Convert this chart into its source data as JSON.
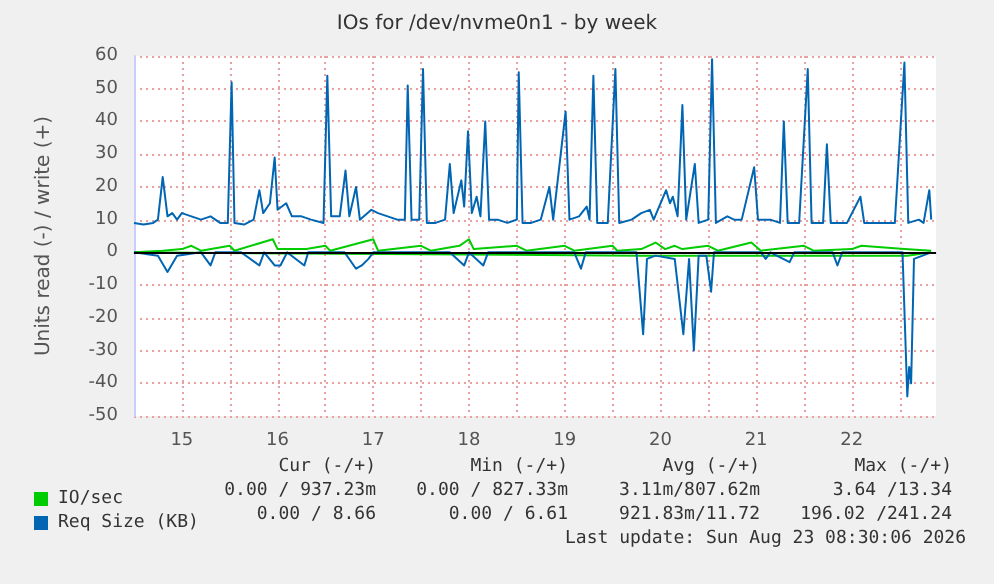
{
  "chart_data": {
    "type": "line",
    "title": "IOs for /dev/nvme0n1 - by week",
    "ylabel": "Units read (-) / write (+)",
    "xlim": [
      15.0,
      23.38
    ],
    "xticks": [
      {
        "value": 15.5,
        "label": "15"
      },
      {
        "value": 16,
        "label": null
      },
      {
        "value": 16.5,
        "label": "16"
      },
      {
        "value": 17,
        "label": null
      },
      {
        "value": 17.5,
        "label": "17"
      },
      {
        "value": 18,
        "label": null
      },
      {
        "value": 18.5,
        "label": "18"
      },
      {
        "value": 19,
        "label": null
      },
      {
        "value": 19.5,
        "label": "19"
      },
      {
        "value": 20,
        "label": null
      },
      {
        "value": 20.5,
        "label": "20"
      },
      {
        "value": 21,
        "label": null
      },
      {
        "value": 21.5,
        "label": "21"
      },
      {
        "value": 22,
        "label": null
      },
      {
        "value": 22.5,
        "label": "22"
      },
      {
        "value": 23,
        "label": null
      }
    ],
    "ylim": [
      -50,
      60
    ],
    "yticks": [
      -50,
      -40,
      -30,
      -20,
      -10,
      0,
      10,
      20,
      30,
      40,
      50,
      60
    ],
    "grid": true,
    "legend": "bottom left",
    "marker": "none",
    "line_style": "solid",
    "ref_lines": [
      {
        "axis": "y",
        "value": 0,
        "label": null,
        "color": "#000000"
      }
    ],
    "series": [
      {
        "color": "#00cc00",
        "x": [
          15.0,
          20.3,
          20.85,
          23.08,
          23.33
        ],
        "values": [
          0,
          -1,
          -1,
          -1,
          0
        ]
      },
      {
        "name": "IO/sec",
        "color": "#00cc00",
        "x": [
          15.0,
          15.3,
          15.5,
          15.6,
          15.7,
          16.0,
          16.05,
          16.45,
          16.5,
          16.8,
          17.0,
          17.05,
          17.5,
          17.55,
          18.0,
          18.1,
          18.4,
          18.5,
          18.55,
          19.0,
          19.1,
          19.5,
          19.6,
          20.0,
          20.05,
          20.3,
          20.45,
          20.55,
          20.65,
          20.73,
          21.0,
          21.1,
          21.45,
          21.55,
          22.0,
          22.1,
          22.5,
          22.6,
          23.05,
          23.33
        ],
        "values": [
          0,
          0.5,
          1,
          2,
          0.5,
          2,
          0.5,
          4,
          1,
          1,
          2,
          0.5,
          4,
          0.5,
          2,
          0.5,
          2,
          4,
          1,
          2,
          0.5,
          2,
          0.5,
          2,
          0.5,
          1,
          3,
          1,
          2,
          1,
          2,
          0.5,
          3,
          0.5,
          2,
          0.5,
          1,
          2,
          1,
          0.5
        ]
      },
      {
        "color": "#0066b3",
        "x": [
          15.0,
          15.25,
          15.35,
          15.45,
          15.7,
          15.8,
          15.85,
          16.12,
          16.31,
          16.36,
          16.47,
          16.53,
          16.6,
          16.78,
          16.82,
          17.2,
          17.32,
          17.38,
          17.45,
          17.5,
          18.3,
          18.45,
          18.5,
          18.65,
          18.7,
          19.6,
          19.67,
          19.72,
          20.25,
          20.32,
          20.36,
          20.45,
          20.65,
          20.74,
          20.8,
          20.85,
          20.9,
          20.98,
          21.03,
          21.06,
          21.55,
          21.6,
          21.65,
          21.85,
          21.9,
          22.3,
          22.35,
          22.4,
          23.03,
          23.08,
          23.1,
          23.12,
          23.15,
          23.33
        ],
        "values": [
          0,
          -1,
          -6,
          -1,
          0,
          -4,
          0,
          0,
          -4,
          0,
          -4,
          -4,
          0,
          -4,
          0,
          0,
          -5,
          -4,
          -2,
          0,
          0,
          -4,
          0,
          -4,
          0,
          0,
          -5,
          0,
          0,
          -25,
          -2,
          -1,
          -2,
          -25,
          -2,
          -30,
          -1,
          -1,
          -12,
          0,
          0,
          -2,
          0,
          -3,
          0,
          0,
          -4,
          0,
          0,
          -44,
          -35,
          -40,
          -2,
          0
        ]
      },
      {
        "name": "Req Size (KB)",
        "color": "#0066b3",
        "x": [
          15.0,
          15.1,
          15.2,
          15.25,
          15.3,
          15.35,
          15.4,
          15.45,
          15.5,
          15.6,
          15.7,
          15.8,
          15.9,
          15.98,
          16.02,
          16.05,
          16.15,
          16.25,
          16.31,
          16.35,
          16.42,
          16.47,
          16.5,
          16.59,
          16.65,
          16.75,
          16.85,
          16.98,
          17.02,
          17.06,
          17.15,
          17.21,
          17.25,
          17.32,
          17.36,
          17.48,
          17.55,
          17.65,
          17.75,
          17.83,
          17.86,
          17.9,
          17.98,
          18.02,
          18.06,
          18.15,
          18.25,
          18.3,
          18.34,
          18.42,
          18.45,
          18.49,
          18.53,
          18.58,
          18.62,
          18.67,
          18.71,
          18.8,
          18.9,
          19.0,
          19.02,
          19.06,
          19.15,
          19.25,
          19.34,
          19.38,
          19.51,
          19.55,
          19.65,
          19.73,
          19.76,
          19.8,
          19.84,
          19.95,
          20.03,
          20.07,
          20.2,
          20.3,
          20.39,
          20.43,
          20.56,
          20.6,
          20.63,
          20.68,
          20.73,
          20.77,
          20.86,
          20.9,
          21.0,
          21.04,
          21.08,
          21.2,
          21.27,
          21.35,
          21.48,
          21.52,
          21.65,
          21.75,
          21.79,
          21.83,
          21.95,
          22.04,
          22.08,
          22.2,
          22.24,
          22.28,
          22.45,
          22.59,
          22.63,
          22.8,
          22.95,
          23.05,
          23.09,
          23.2,
          23.25,
          23.31,
          23.33
        ],
        "values": [
          9,
          8.5,
          9,
          10,
          23,
          11,
          12,
          10,
          12,
          11,
          10,
          11,
          9,
          9,
          52,
          9,
          8.5,
          10,
          19,
          12,
          15,
          29,
          13,
          15,
          11,
          11,
          10,
          9,
          54,
          11,
          11,
          25,
          11,
          20,
          10,
          13,
          12,
          11,
          10,
          10,
          51,
          10,
          10,
          56,
          9,
          9,
          10,
          27,
          12,
          22,
          14,
          37,
          12,
          17,
          11,
          40,
          10,
          10,
          9,
          10,
          55,
          9,
          9,
          10,
          20,
          10,
          43,
          10,
          11,
          14,
          10,
          54,
          9,
          9,
          56,
          9,
          10,
          12,
          13,
          10,
          19,
          15,
          17,
          11,
          45,
          10,
          27,
          9,
          10,
          59,
          9,
          11,
          10,
          10,
          26,
          10,
          10,
          9,
          40,
          9,
          9,
          56,
          9,
          9,
          33,
          9,
          9,
          17,
          9,
          9,
          9,
          58,
          9,
          10,
          9,
          19,
          10
        ]
      }
    ],
    "annotations": [
      "Cur (-/+)",
      "Min (-/+)",
      "Avg (-/+)",
      "Max (-/+)",
      "0.00 / 937.23m",
      "0.00 / 827.33m",
      "3.11m/807.62m",
      "3.64 /13.34",
      "0.00 / 8.66",
      "0.00 / 6.61",
      "921.83m/11.72",
      "196.02 /241.24",
      "Last update: Sun Aug 23 08:30:06 2026"
    ]
  }
}
